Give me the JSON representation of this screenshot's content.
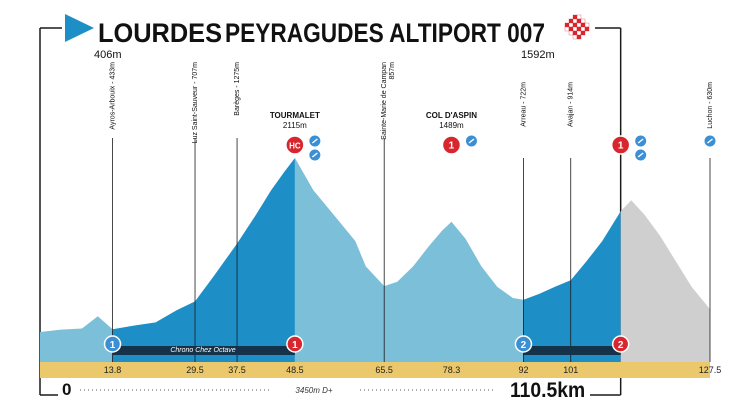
{
  "title": {
    "start": "LOURDES",
    "finish": "PEYRAGUDES ALTIPORT 007",
    "start_altitude": "406m",
    "finish_altitude": "1592m"
  },
  "footer": {
    "start_km": "0",
    "elevation_gain": "3450m D+",
    "total_distance": "110.5km"
  },
  "sprint_label": "Chrono Chez Octave",
  "colors": {
    "profile_dark": "#1d8fc6",
    "profile_light": "#7cbfd8",
    "profile_after": "#cfcfcf",
    "km_band": "#ebc86c",
    "climb_marker": "#d7262d",
    "point_marker": "#3b8fd4",
    "title_arrow": "#1d8fc6",
    "frame": "#1a1a1a"
  },
  "chart_data": {
    "type": "area",
    "x_unit": "km",
    "y_unit": "m",
    "finish_km": 110.5,
    "xlim": [
      0,
      127.5
    ],
    "ylim": [
      0,
      2115
    ],
    "profile": [
      [
        0,
        406
      ],
      [
        4,
        430
      ],
      [
        8,
        440
      ],
      [
        11,
        560
      ],
      [
        13.8,
        433
      ],
      [
        18,
        470
      ],
      [
        22,
        500
      ],
      [
        26,
        620
      ],
      [
        29.5,
        707
      ],
      [
        33,
        950
      ],
      [
        37.5,
        1275
      ],
      [
        41,
        1550
      ],
      [
        44,
        1800
      ],
      [
        46.5,
        1980
      ],
      [
        48.5,
        2115
      ],
      [
        52,
        1800
      ],
      [
        56,
        1550
      ],
      [
        60,
        1300
      ],
      [
        62,
        1050
      ],
      [
        65.5,
        857
      ],
      [
        68,
        900
      ],
      [
        71,
        1050
      ],
      [
        74,
        1250
      ],
      [
        76.5,
        1400
      ],
      [
        78.3,
        1489
      ],
      [
        81,
        1320
      ],
      [
        84,
        1050
      ],
      [
        87,
        850
      ],
      [
        90,
        740
      ],
      [
        92,
        722
      ],
      [
        95,
        780
      ],
      [
        98,
        850
      ],
      [
        101,
        914
      ],
      [
        104,
        1100
      ],
      [
        107,
        1300
      ],
      [
        110.5,
        1592
      ],
      [
        112.5,
        1700
      ],
      [
        115,
        1560
      ],
      [
        118,
        1350
      ],
      [
        121,
        1100
      ],
      [
        124,
        850
      ],
      [
        127.5,
        630
      ]
    ],
    "shading": {
      "dark_ranges": [
        [
          13.8,
          48.5
        ],
        [
          92,
          110.5
        ]
      ],
      "light_ranges": [
        [
          0,
          13.8
        ],
        [
          48.5,
          92
        ]
      ],
      "after_finish_range": [
        110.5,
        127.5
      ]
    },
    "km_labels": [
      {
        "km": 13.8,
        "label": "13.8"
      },
      {
        "km": 29.5,
        "label": "29.5"
      },
      {
        "km": 37.5,
        "label": "37.5"
      },
      {
        "km": 48.5,
        "label": "48.5"
      },
      {
        "km": 65.5,
        "label": "65.5"
      },
      {
        "km": 78.3,
        "label": "78.3"
      },
      {
        "km": 92,
        "label": "92"
      },
      {
        "km": 101,
        "label": "101"
      },
      {
        "km": 127.5,
        "label": "127.5"
      }
    ],
    "waypoints": [
      {
        "km": 13.8,
        "label": "Ayros-Arbouix - 433m",
        "line_top": 70
      },
      {
        "km": 29.5,
        "label": "Luz Saint-Sauveur - 707m",
        "line_top": 70
      },
      {
        "km": 37.5,
        "label": "Barèges - 1275m",
        "line_top": 70
      },
      {
        "km": 65.5,
        "label": "Sainte-Marie de Campan",
        "label2": "857m",
        "line_top": 70
      },
      {
        "km": 92,
        "label": "Arreau - 722m",
        "line_top": 90
      },
      {
        "km": 101,
        "label": "Avajan - 914m",
        "line_top": 90
      },
      {
        "km": 127.5,
        "label": "Luchon - 630m",
        "line_top": 90
      }
    ],
    "climbs": [
      {
        "km": 48.5,
        "name": "TOURMALET",
        "altitude": "2115m",
        "category": "HC",
        "extra_icons": 2
      },
      {
        "km": 78.3,
        "name": "COL D'ASPIN",
        "altitude": "1489m",
        "category": "1",
        "extra_icons": 1
      },
      {
        "km": 110.5,
        "name": "",
        "altitude": "",
        "category": "1",
        "extra_icons": 2
      }
    ],
    "bottom_markers": [
      {
        "km": 13.8,
        "label": "1",
        "kind": "blue"
      },
      {
        "km": 48.5,
        "label": "1",
        "kind": "red"
      },
      {
        "km": 92,
        "label": "2",
        "kind": "blue"
      },
      {
        "km": 110.5,
        "label": "2",
        "kind": "red"
      }
    ],
    "timed_segments": [
      [
        13.8,
        48.5
      ],
      [
        92,
        110.5
      ]
    ],
    "extra_icon_right": {
      "km": 127.5,
      "count": 1
    }
  }
}
